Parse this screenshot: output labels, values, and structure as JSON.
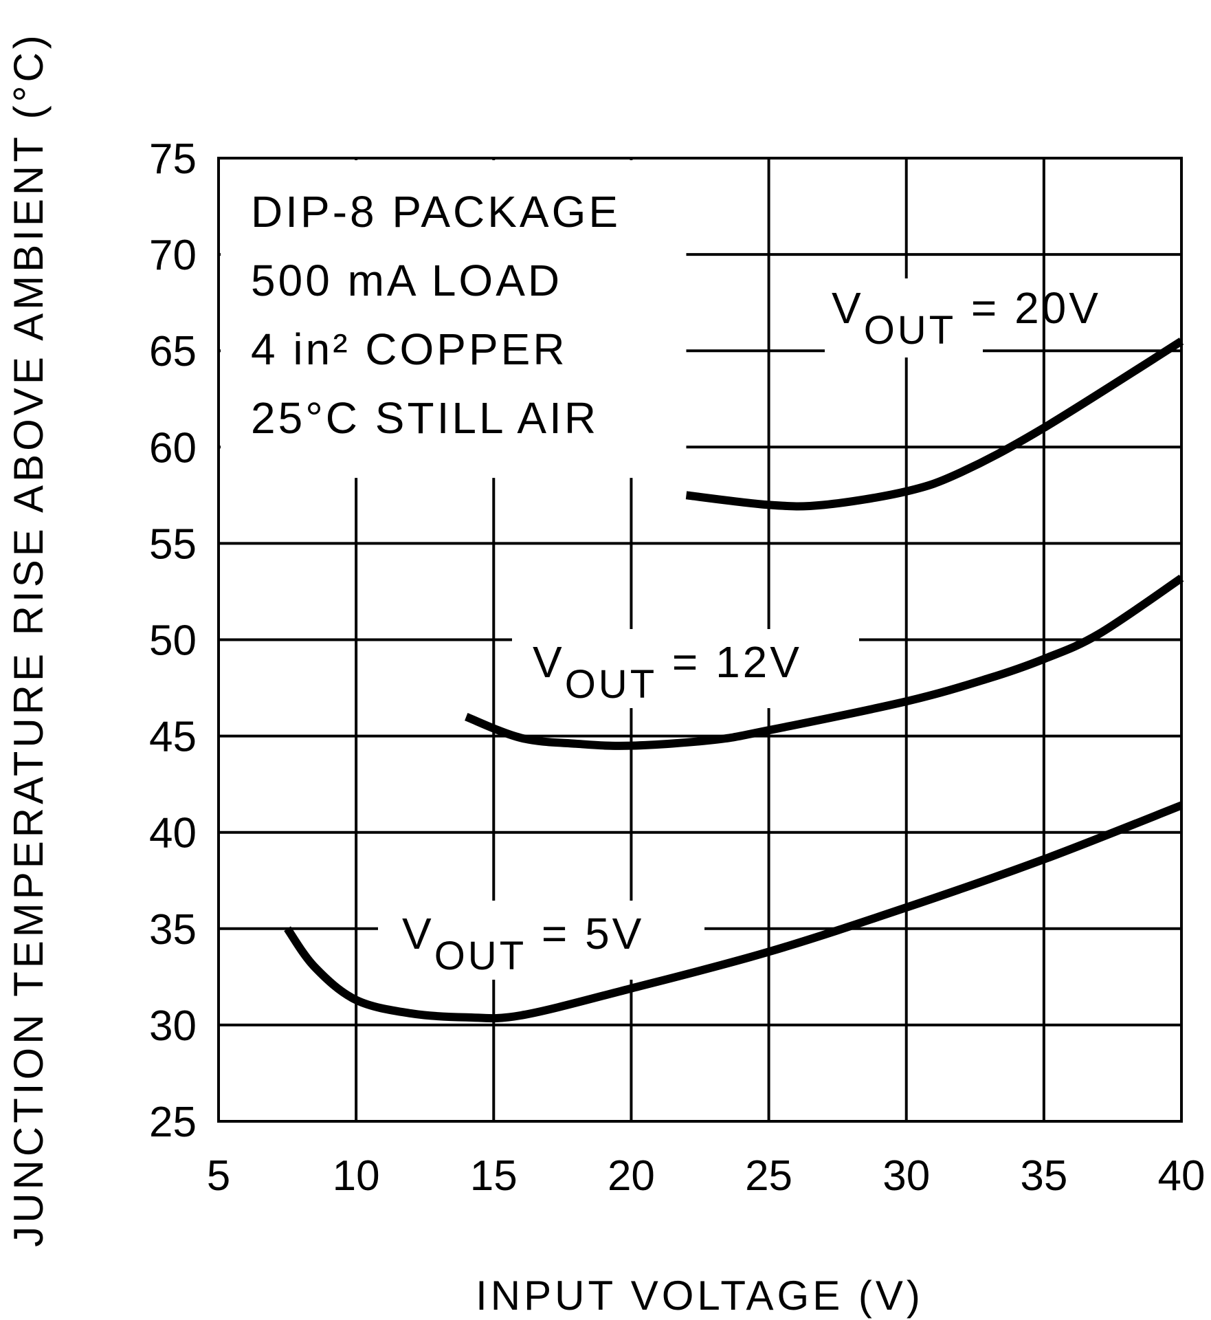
{
  "chart_data": {
    "type": "line",
    "title": "",
    "xlabel": "INPUT VOLTAGE (V)",
    "ylabel": "JUNCTION TEMPERATURE RISE ABOVE AMBIENT (°C)",
    "xlim": [
      5,
      40
    ],
    "ylim": [
      25,
      75
    ],
    "xticks": [
      5,
      10,
      15,
      20,
      25,
      30,
      35,
      40
    ],
    "yticks": [
      25,
      30,
      35,
      40,
      45,
      50,
      55,
      60,
      65,
      70,
      75
    ],
    "grid": true,
    "conditions": [
      "DIP-8 PACKAGE",
      "500 mA LOAD",
      "4 in² COPPER",
      "25°C STILL AIR"
    ],
    "color": "#000000",
    "series": [
      {
        "name": "VOUT = 20V",
        "label_main": "V",
        "label_sub": "OUT",
        "label_tail": " = 20V",
        "x": [
          22,
          25,
          27,
          30,
          32,
          35,
          40
        ],
        "y": [
          57.5,
          57.0,
          57.0,
          57.7,
          58.7,
          61.0,
          65.5
        ]
      },
      {
        "name": "VOUT = 12V",
        "label_main": "V",
        "label_sub": "OUT",
        "label_tail": " = 12V",
        "x": [
          14,
          16,
          18,
          20,
          23,
          25,
          30,
          33,
          35,
          37,
          40
        ],
        "y": [
          46.0,
          44.9,
          44.6,
          44.5,
          44.8,
          45.3,
          46.8,
          48.0,
          49.0,
          50.3,
          53.2
        ]
      },
      {
        "name": "VOUT = 5V",
        "label_main": "V",
        "label_sub": "OUT",
        "label_tail": " = 5V",
        "x": [
          7.5,
          8.5,
          10,
          12,
          14,
          16,
          20,
          25,
          30,
          35,
          40
        ],
        "y": [
          35.0,
          33.0,
          31.3,
          30.6,
          30.4,
          30.5,
          31.9,
          33.8,
          36.1,
          38.6,
          41.4
        ]
      }
    ]
  }
}
